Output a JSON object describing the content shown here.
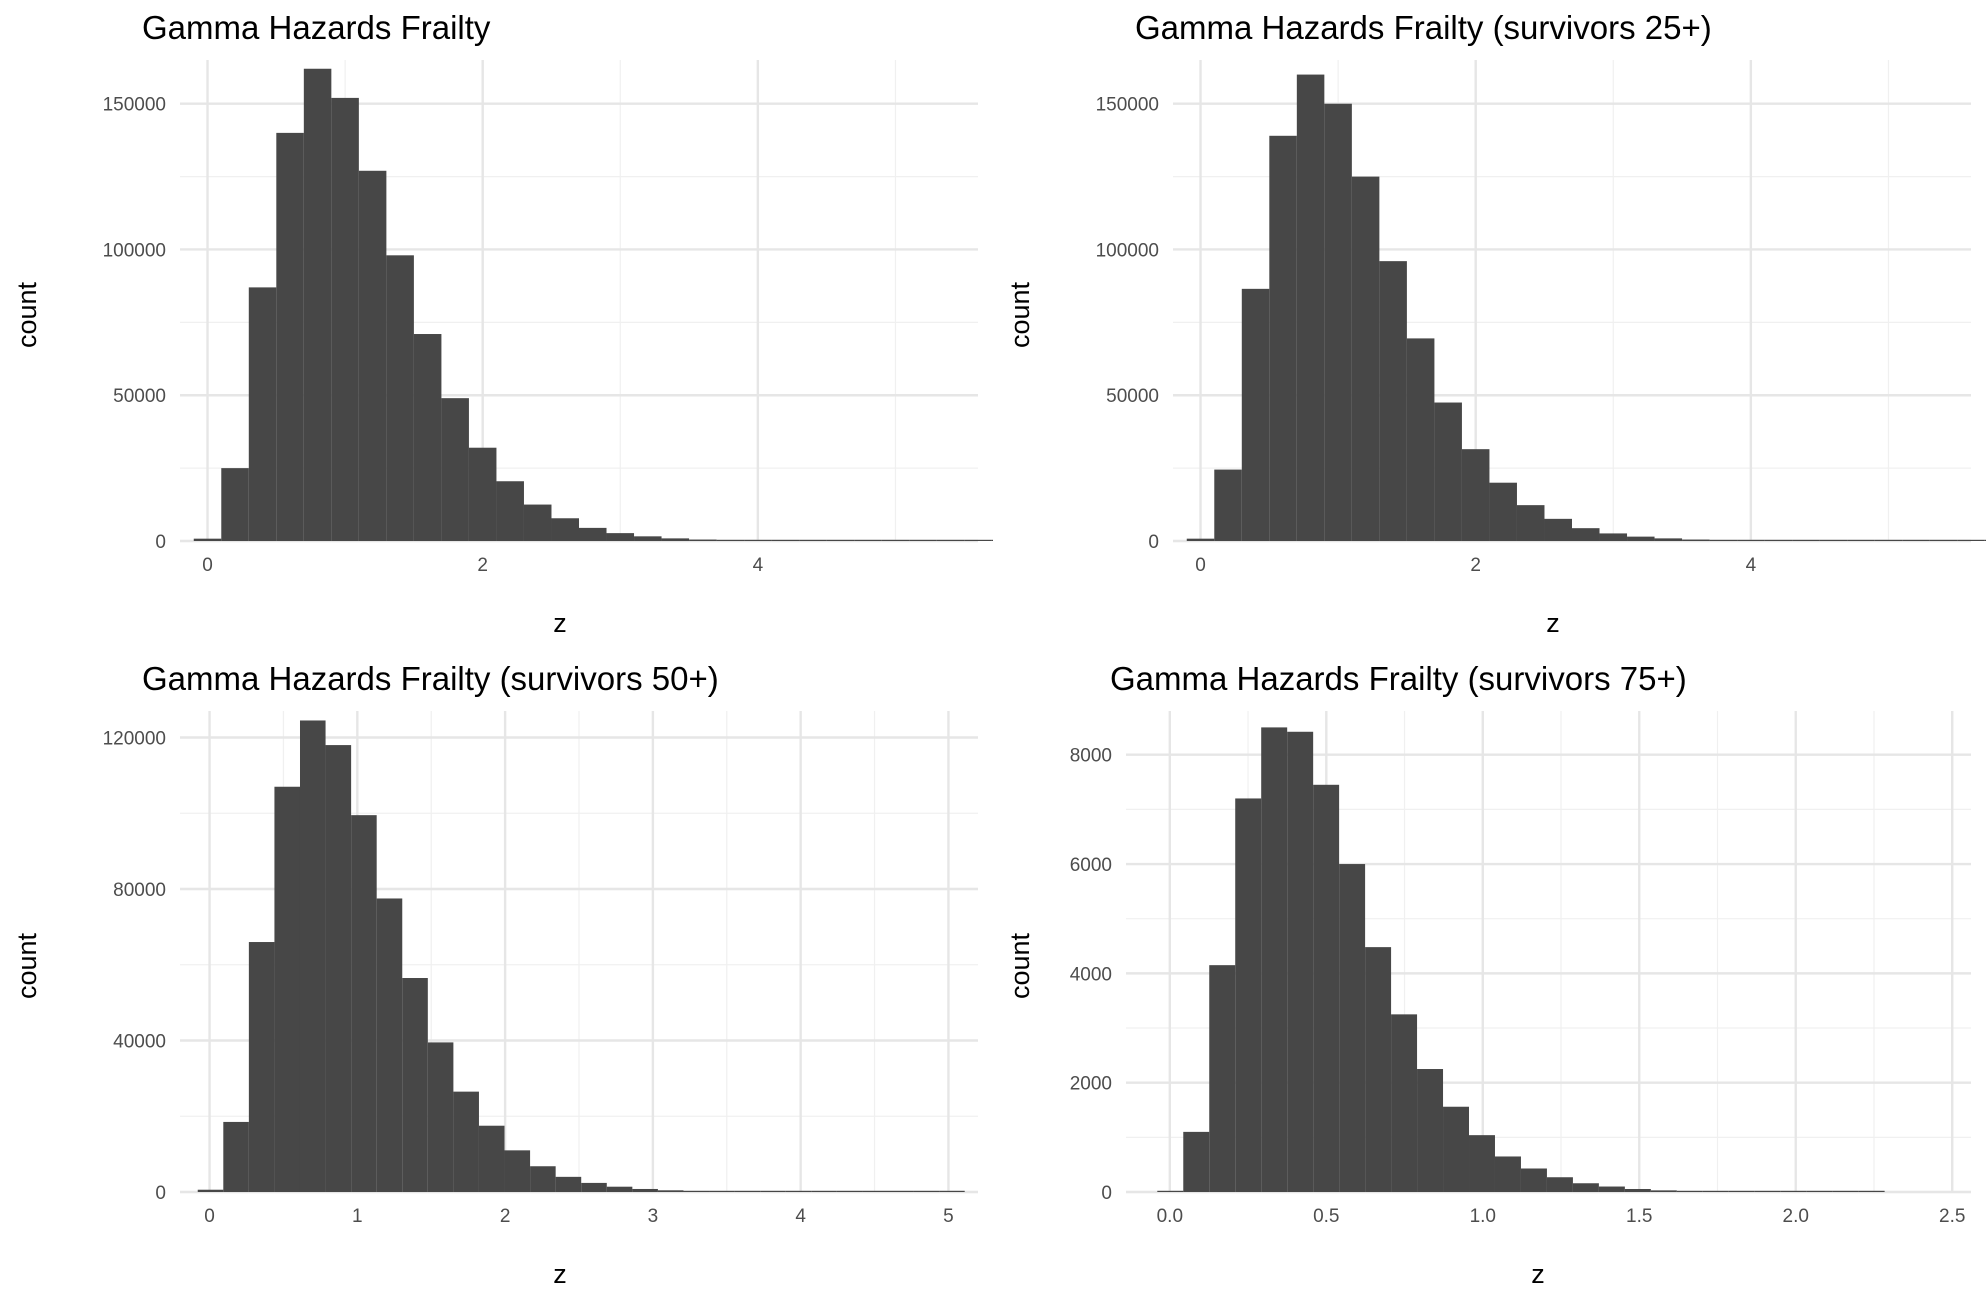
{
  "colors": {
    "bar": "#474747",
    "grid_major": "#e6e6e6",
    "grid_minor": "#f0f0f0",
    "background": "#ffffff"
  },
  "chart_data": [
    {
      "type": "bar",
      "title": "Gamma Hazards Frailty",
      "xlabel": "z",
      "ylabel": "count",
      "xlim": [
        -0.2,
        5.6
      ],
      "ylim": [
        0,
        165000
      ],
      "bin_start": -0.1,
      "bin_width": 0.2,
      "values": [
        800,
        25000,
        87000,
        140000,
        162000,
        152000,
        127000,
        98000,
        71000,
        49000,
        32000,
        20500,
        12500,
        7800,
        4500,
        2700,
        1600,
        900,
        500,
        300,
        180,
        100,
        60,
        40,
        20,
        10,
        5,
        3,
        2,
        1
      ],
      "x_ticks": [
        0,
        2,
        4
      ],
      "x_tick_labels": [
        "0",
        "2",
        "4"
      ],
      "y_ticks": [
        0,
        50000,
        100000,
        150000
      ],
      "y_tick_labels": [
        "0",
        "50000",
        "100000",
        "150000"
      ],
      "grid": true
    },
    {
      "type": "bar",
      "title": "Gamma Hazards Frailty (survivors 25+)",
      "xlabel": "z",
      "ylabel": "count",
      "xlim": [
        -0.2,
        5.6
      ],
      "ylim": [
        0,
        165000
      ],
      "bin_start": -0.1,
      "bin_width": 0.2,
      "values": [
        800,
        24500,
        86500,
        139000,
        160000,
        150000,
        125000,
        96000,
        69500,
        47500,
        31500,
        20000,
        12300,
        7600,
        4400,
        2600,
        1500,
        900,
        500,
        300,
        180,
        100,
        60,
        40,
        20,
        10,
        5,
        3,
        2,
        1
      ],
      "x_ticks": [
        0,
        2,
        4
      ],
      "x_tick_labels": [
        "0",
        "2",
        "4"
      ],
      "y_ticks": [
        0,
        50000,
        100000,
        150000
      ],
      "y_tick_labels": [
        "0",
        "50000",
        "100000",
        "150000"
      ],
      "grid": true
    },
    {
      "type": "bar",
      "title": "Gamma Hazards Frailty (survivors 50+)",
      "xlabel": "z",
      "ylabel": "count",
      "xlim": [
        -0.2,
        5.2
      ],
      "ylim": [
        0,
        127000
      ],
      "bin_start": -0.08,
      "bin_width": 0.173,
      "values": [
        600,
        18500,
        66000,
        107000,
        124500,
        118000,
        99500,
        77500,
        56500,
        39500,
        26500,
        17500,
        11000,
        6800,
        4000,
        2400,
        1400,
        800,
        450,
        270,
        150,
        80,
        45,
        25,
        15,
        8,
        4,
        2,
        1,
        1
      ],
      "x_ticks": [
        0,
        1,
        2,
        3,
        4,
        5
      ],
      "x_tick_labels": [
        "0",
        "1",
        "2",
        "3",
        "4",
        "5"
      ],
      "y_ticks": [
        0,
        40000,
        80000,
        120000
      ],
      "y_tick_labels": [
        "0",
        "40000",
        "80000",
        "120000"
      ],
      "grid": true
    },
    {
      "type": "bar",
      "title": "Gamma Hazards Frailty (survivors 75+)",
      "xlabel": "z",
      "ylabel": "count",
      "xlim": [
        -0.14,
        2.56
      ],
      "ylim": [
        0,
        8800
      ],
      "bin_start": -0.04,
      "bin_width": 0.083,
      "values": [
        20,
        1100,
        4150,
        7200,
        8500,
        8420,
        7450,
        6000,
        4480,
        3250,
        2250,
        1560,
        1040,
        650,
        430,
        270,
        160,
        100,
        55,
        30,
        18,
        10,
        6,
        4,
        2,
        1,
        1,
        1,
        0,
        0
      ],
      "x_ticks": [
        0,
        0.5,
        1,
        1.5,
        2,
        2.5
      ],
      "x_tick_labels": [
        "0.0",
        "0.5",
        "1.0",
        "1.5",
        "2.0",
        "2.5"
      ],
      "y_ticks": [
        0,
        2000,
        4000,
        6000,
        8000
      ],
      "y_tick_labels": [
        "0",
        "2000",
        "4000",
        "6000",
        "8000"
      ],
      "grid": true
    }
  ]
}
